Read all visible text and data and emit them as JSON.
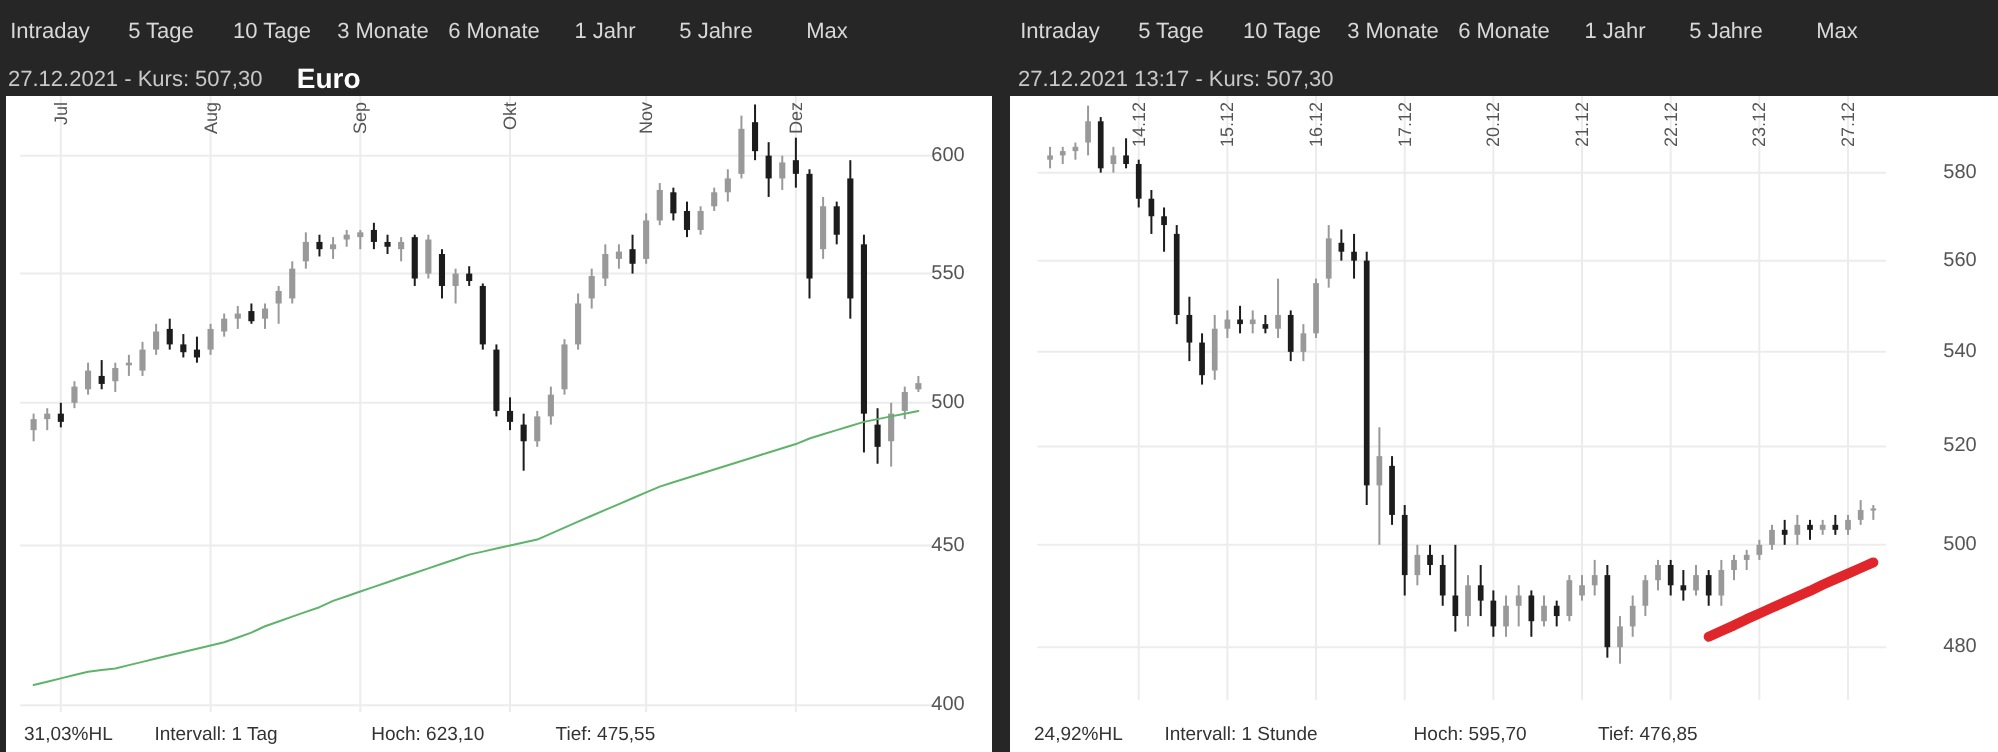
{
  "chart_data": [
    {
      "type": "candlestick",
      "title": "27.12.2021  -  Kurs: 507,30",
      "subtitle": "Euro",
      "categories": [
        null,
        null,
        "Jul",
        null,
        null,
        null,
        null,
        null,
        null,
        null,
        null,
        null,
        null,
        "Aug",
        null,
        null,
        null,
        null,
        null,
        null,
        null,
        null,
        null,
        null,
        "Sep",
        null,
        null,
        null,
        null,
        null,
        null,
        null,
        null,
        null,
        null,
        "Okt",
        null,
        null,
        null,
        null,
        null,
        null,
        null,
        null,
        null,
        "Nov",
        null,
        null,
        null,
        null,
        null,
        null,
        null,
        null,
        null,
        null,
        "Dez",
        null,
        null,
        null,
        null,
        null,
        null,
        null,
        null,
        null
      ],
      "ohlc": [
        [
          490,
          496,
          486,
          494
        ],
        [
          494,
          498,
          490,
          496
        ],
        [
          496,
          500,
          491,
          493
        ],
        [
          500,
          508,
          498,
          506
        ],
        [
          505,
          515,
          503,
          512
        ],
        [
          510,
          516,
          505,
          507
        ],
        [
          508,
          515,
          504,
          513
        ],
        [
          514,
          518,
          510,
          515
        ],
        [
          512,
          523,
          510,
          520
        ],
        [
          520,
          530,
          518,
          527
        ],
        [
          528,
          532,
          520,
          522
        ],
        [
          522,
          526,
          517,
          519
        ],
        [
          520,
          525,
          515,
          517
        ],
        [
          520,
          530,
          518,
          528
        ],
        [
          527,
          534,
          525,
          532
        ],
        [
          532,
          537,
          528,
          534
        ],
        [
          535,
          538,
          530,
          531
        ],
        [
          532,
          538,
          528,
          536
        ],
        [
          538,
          545,
          530,
          543
        ],
        [
          540,
          555,
          538,
          552
        ],
        [
          555,
          567,
          552,
          563
        ],
        [
          563,
          566,
          557,
          560
        ],
        [
          560,
          565,
          556,
          562
        ],
        [
          564,
          568,
          561,
          566
        ],
        [
          565,
          568,
          560,
          567
        ],
        [
          568,
          571,
          560,
          563
        ],
        [
          563,
          566,
          558,
          561
        ],
        [
          560,
          565,
          555,
          563
        ],
        [
          565,
          566,
          545,
          548
        ],
        [
          550,
          566,
          548,
          564
        ],
        [
          558,
          560,
          540,
          545
        ],
        [
          545,
          552,
          538,
          550
        ],
        [
          550,
          553,
          545,
          547
        ],
        [
          545,
          546,
          520,
          522
        ],
        [
          520,
          522,
          495,
          497
        ],
        [
          497,
          502,
          490,
          493
        ],
        [
          492,
          496,
          475.55,
          486
        ],
        [
          486,
          497,
          484,
          495
        ],
        [
          495,
          506,
          492,
          503
        ],
        [
          505,
          524,
          503,
          522
        ],
        [
          522,
          542,
          520,
          538
        ],
        [
          540,
          552,
          536,
          549
        ],
        [
          548,
          562,
          545,
          558
        ],
        [
          556,
          562,
          552,
          559
        ],
        [
          560,
          566,
          550,
          554
        ],
        [
          556,
          575,
          554,
          572
        ],
        [
          572,
          588,
          570,
          585
        ],
        [
          584,
          586,
          572,
          575
        ],
        [
          576,
          580,
          565,
          568
        ],
        [
          568,
          578,
          566,
          576
        ],
        [
          578,
          586,
          576,
          584
        ],
        [
          584,
          594,
          580,
          590
        ],
        [
          592,
          618,
          590,
          612
        ],
        [
          615,
          623.1,
          598,
          602
        ],
        [
          600,
          606,
          582,
          590
        ],
        [
          590,
          600,
          585,
          597
        ],
        [
          598,
          608,
          586,
          592
        ],
        [
          592,
          594,
          540,
          548
        ],
        [
          560,
          582,
          556,
          578
        ],
        [
          578,
          580,
          562,
          566
        ],
        [
          590,
          598,
          532,
          540
        ],
        [
          562,
          566,
          482,
          496
        ],
        [
          492,
          498,
          478,
          484
        ],
        [
          486,
          500,
          477,
          496
        ],
        [
          497,
          506,
          494,
          504
        ],
        [
          505,
          510,
          504,
          507.3
        ]
      ],
      "series": [
        {
          "type": "line",
          "color": "#5fb36a",
          "values": [
            406,
            407,
            408,
            409,
            410,
            410.5,
            411,
            412,
            413,
            414,
            415,
            416,
            417,
            418,
            419,
            420.5,
            422,
            424,
            425.5,
            427,
            428.5,
            430,
            432,
            433.5,
            435,
            436.5,
            438,
            439.5,
            441,
            442.5,
            444,
            445.5,
            447,
            448,
            449,
            450,
            451,
            452,
            454,
            456,
            458,
            460,
            462,
            464,
            466,
            468,
            470,
            471.5,
            473,
            474.5,
            476,
            477.5,
            479,
            480.5,
            482,
            483.5,
            485,
            487,
            488.5,
            490,
            491.5,
            493,
            494,
            495,
            496,
            497
          ]
        }
      ],
      "log": true,
      "ylim": [
        398,
        627
      ],
      "yticks": [
        400,
        450,
        500,
        550,
        600
      ],
      "grid": true,
      "annotations": [
        "Intraday",
        "5 Tage",
        "10 Tage",
        "3 Monate",
        "6 Monate",
        "1 Jahr",
        "5 Jahre",
        "Max",
        "31,03%HL",
        "Intervall: 1 Tag",
        "Hoch:  623,10",
        "Tief:  475,55"
      ]
    },
    {
      "type": "candlestick",
      "title": "27.12.2021 13:17  -  Kurs: 507,30",
      "categories": [
        null,
        null,
        null,
        null,
        null,
        null,
        null,
        "14.12",
        null,
        null,
        null,
        null,
        null,
        null,
        "15.12",
        null,
        null,
        null,
        null,
        null,
        null,
        "16.12",
        null,
        null,
        null,
        null,
        null,
        null,
        "17.12",
        null,
        null,
        null,
        null,
        null,
        null,
        "20.12",
        null,
        null,
        null,
        null,
        null,
        null,
        "21.12",
        null,
        null,
        null,
        null,
        null,
        null,
        "22.12",
        null,
        null,
        null,
        null,
        null,
        null,
        "23.12",
        null,
        null,
        null,
        null,
        null,
        null,
        "27.12",
        null,
        null
      ],
      "ohlc": [
        [
          583,
          586,
          581,
          584
        ],
        [
          584,
          586,
          582,
          585
        ],
        [
          585,
          587,
          583,
          586
        ],
        [
          587,
          595.7,
          584,
          592
        ],
        [
          592,
          593,
          580,
          581
        ],
        [
          582,
          586,
          580,
          584
        ],
        [
          584,
          588,
          581,
          582
        ],
        [
          582,
          583,
          572,
          574
        ],
        [
          574,
          576,
          566,
          570
        ],
        [
          570,
          572,
          562,
          568
        ],
        [
          566,
          568,
          546,
          548
        ],
        [
          548,
          552,
          538,
          542
        ],
        [
          542,
          544,
          533,
          535
        ],
        [
          536,
          548,
          534,
          545
        ],
        [
          545,
          549,
          543,
          547
        ],
        [
          547,
          550,
          544,
          546
        ],
        [
          546,
          549,
          544,
          547
        ],
        [
          546,
          548,
          544,
          545
        ],
        [
          545,
          556,
          543,
          548
        ],
        [
          548,
          549,
          538,
          540
        ],
        [
          540,
          546,
          538,
          544
        ],
        [
          544,
          556,
          543,
          555
        ],
        [
          556,
          568,
          554,
          565
        ],
        [
          564,
          567,
          560,
          562
        ],
        [
          562,
          566,
          556,
          560
        ],
        [
          560,
          562,
          508,
          512
        ],
        [
          512,
          524,
          500,
          518
        ],
        [
          516,
          518,
          504,
          506
        ],
        [
          506,
          508,
          490,
          494
        ],
        [
          494,
          500,
          492,
          498
        ],
        [
          498,
          500,
          494,
          496
        ],
        [
          496,
          498,
          488,
          490
        ],
        [
          490,
          500,
          483,
          486
        ],
        [
          486,
          494,
          484,
          492
        ],
        [
          492,
          496,
          486,
          489
        ],
        [
          489,
          491,
          482,
          484
        ],
        [
          484,
          490,
          482,
          488
        ],
        [
          488,
          492,
          484,
          490
        ],
        [
          490,
          491,
          482,
          485
        ],
        [
          485,
          490,
          484,
          488
        ],
        [
          488,
          489,
          484,
          486
        ],
        [
          486,
          494,
          485,
          493
        ],
        [
          490,
          494,
          489,
          492
        ],
        [
          492,
          497,
          490,
          494
        ],
        [
          494,
          496,
          478,
          480
        ],
        [
          480,
          486,
          476.85,
          484
        ],
        [
          484,
          490,
          482,
          488
        ],
        [
          488,
          494,
          486,
          493
        ],
        [
          493,
          497,
          491,
          496
        ],
        [
          496,
          497,
          490,
          492
        ],
        [
          492,
          495,
          489,
          491
        ],
        [
          491,
          496,
          490,
          494
        ],
        [
          494,
          495,
          488,
          490
        ],
        [
          490,
          497,
          488,
          495
        ],
        [
          495,
          498,
          493,
          497
        ],
        [
          497,
          499,
          495,
          498
        ],
        [
          498,
          501,
          497,
          500
        ],
        [
          500,
          504,
          499,
          503
        ],
        [
          503,
          505,
          500,
          502
        ],
        [
          502,
          506,
          500,
          504
        ],
        [
          504,
          505,
          501,
          503
        ],
        [
          503,
          505,
          502,
          504
        ],
        [
          504,
          506,
          502,
          503
        ],
        [
          503,
          506,
          502,
          505
        ],
        [
          505,
          509,
          504,
          507
        ],
        [
          507,
          508,
          505,
          507.3
        ]
      ],
      "series": [
        {
          "type": "line",
          "color": "#e0262b",
          "values": [
            null,
            null,
            null,
            null,
            null,
            null,
            null,
            null,
            null,
            null,
            null,
            null,
            null,
            null,
            null,
            null,
            null,
            null,
            null,
            null,
            null,
            null,
            null,
            null,
            null,
            null,
            null,
            null,
            null,
            null,
            null,
            null,
            null,
            null,
            null,
            null,
            null,
            null,
            null,
            null,
            null,
            null,
            null,
            null,
            null,
            null,
            null,
            null,
            null,
            null,
            null,
            null,
            482,
            483.1,
            484.2,
            485.4,
            486.5,
            487.6,
            488.7,
            489.8,
            490.9,
            492.1,
            493.2,
            494.3,
            495.4,
            496.5
          ]
        }
      ],
      "log": true,
      "ylim": [
        470,
        598
      ],
      "yticks": [
        480,
        500,
        520,
        540,
        560,
        580
      ],
      "grid": true,
      "annotations": [
        "Intraday",
        "5 Tage",
        "10 Tage",
        "3 Monate",
        "6 Monate",
        "1 Jahr",
        "5 Jahre",
        "Max",
        "24,92%HL",
        "Intervall: 1 Stunde",
        "Hoch:  595,70",
        "Tief:  476,85"
      ]
    }
  ]
}
